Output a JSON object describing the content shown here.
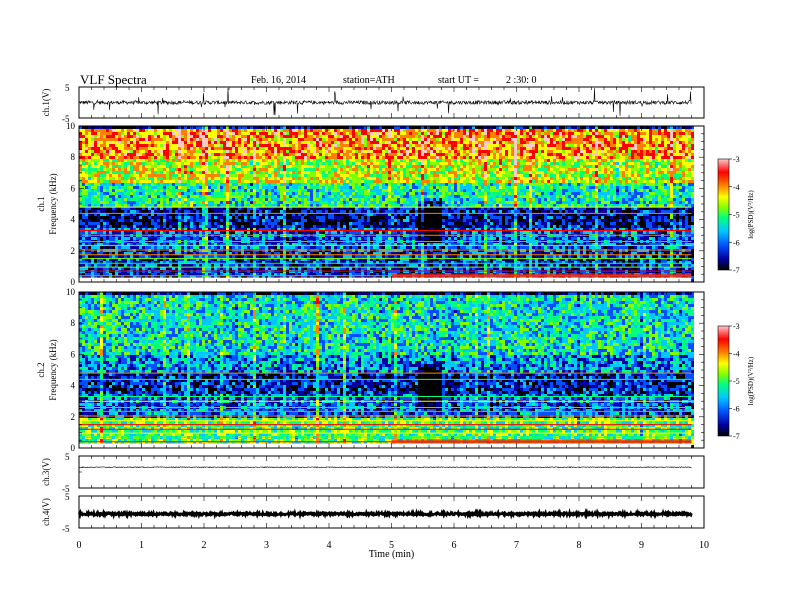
{
  "header": {
    "title": "VLF Spectra",
    "date": "Feb. 16, 2014",
    "station": "station=ATH",
    "start_prefix": "start UT =",
    "start_time": "2 :30: 0"
  },
  "chart_data": [
    {
      "type": "line",
      "name": "ch1-waveform",
      "ylabel": "ch.1(V)",
      "ylim": [
        -5,
        5
      ],
      "yticks": [
        "5",
        "-5"
      ],
      "xlim": [
        0,
        10
      ],
      "baseline": 0,
      "noise_amplitude": 0.6,
      "spike_amplitude": 4.5
    },
    {
      "type": "heatmap",
      "name": "ch1-spectrogram",
      "ylabel_channel": "ch.1",
      "ylabel": "Frequency (kHz)",
      "ylim": [
        0,
        10
      ],
      "yticks": [
        "0",
        "2",
        "4",
        "6",
        "8",
        "10"
      ],
      "xlim": [
        0,
        9.8
      ],
      "quiet_time_min": 5.6,
      "colorbar": {
        "label": "log(PSD)(V²/Hz)",
        "range": [
          -7,
          -3
        ],
        "ticks": [
          "-3",
          "-4",
          "-5",
          "-6",
          "-7"
        ],
        "colors": [
          "#000000",
          "#0000a0",
          "#0050ff",
          "#00c8ff",
          "#00ff80",
          "#80ff00",
          "#ffff00",
          "#ff8000",
          "#ff0000",
          "#ffc8c8"
        ]
      },
      "bands_khz": [
        {
          "from": 8.0,
          "to": 10.0,
          "logpsd": -4.0
        },
        {
          "from": 6.5,
          "to": 8.0,
          "logpsd": -4.6
        },
        {
          "from": 5.0,
          "to": 6.5,
          "logpsd": -5.3
        },
        {
          "from": 3.5,
          "to": 5.0,
          "logpsd": -6.4
        },
        {
          "from": 2.0,
          "to": 3.5,
          "logpsd": -6.0
        },
        {
          "from": 0.3,
          "to": 2.0,
          "logpsd": -6.2
        }
      ]
    },
    {
      "type": "heatmap",
      "name": "ch2-spectrogram",
      "ylabel_channel": "ch.2",
      "ylabel": "Frequency (kHz)",
      "ylim": [
        0,
        10
      ],
      "yticks": [
        "0",
        "2",
        "4",
        "6",
        "8",
        "10"
      ],
      "xlim": [
        0,
        9.8
      ],
      "quiet_time_min": 5.6,
      "colorbar": {
        "label": "log(PSD)(V²/Hz)",
        "range": [
          -7,
          -3
        ],
        "ticks": [
          "-3",
          "-4",
          "-5",
          "-6",
          "-7"
        ]
      },
      "bands_khz": [
        {
          "from": 6.0,
          "to": 10.0,
          "logpsd": -5.4
        },
        {
          "from": 5.0,
          "to": 6.0,
          "logpsd": -5.8
        },
        {
          "from": 3.5,
          "to": 5.0,
          "logpsd": -6.3
        },
        {
          "from": 2.0,
          "to": 3.5,
          "logpsd": -6.0
        },
        {
          "from": 0.3,
          "to": 2.0,
          "logpsd": -5.0
        }
      ]
    },
    {
      "type": "line",
      "name": "ch3-waveform",
      "ylabel": "ch.3(V)",
      "ylim": [
        -5,
        5
      ],
      "yticks": [
        "5",
        "-5"
      ],
      "xlim": [
        0,
        10
      ],
      "baseline": 1.5
    },
    {
      "type": "line",
      "name": "ch4-waveform",
      "ylabel": "ch.4(V)",
      "ylim": [
        -5,
        5
      ],
      "yticks": [
        "5",
        "-5"
      ],
      "xlim": [
        0,
        10
      ],
      "baseline": -0.6
    }
  ],
  "xaxis": {
    "label": "Time (min)",
    "range": [
      0,
      10
    ],
    "ticks": [
      "0",
      "1",
      "2",
      "3",
      "4",
      "5",
      "6",
      "7",
      "8",
      "9",
      "10"
    ]
  }
}
